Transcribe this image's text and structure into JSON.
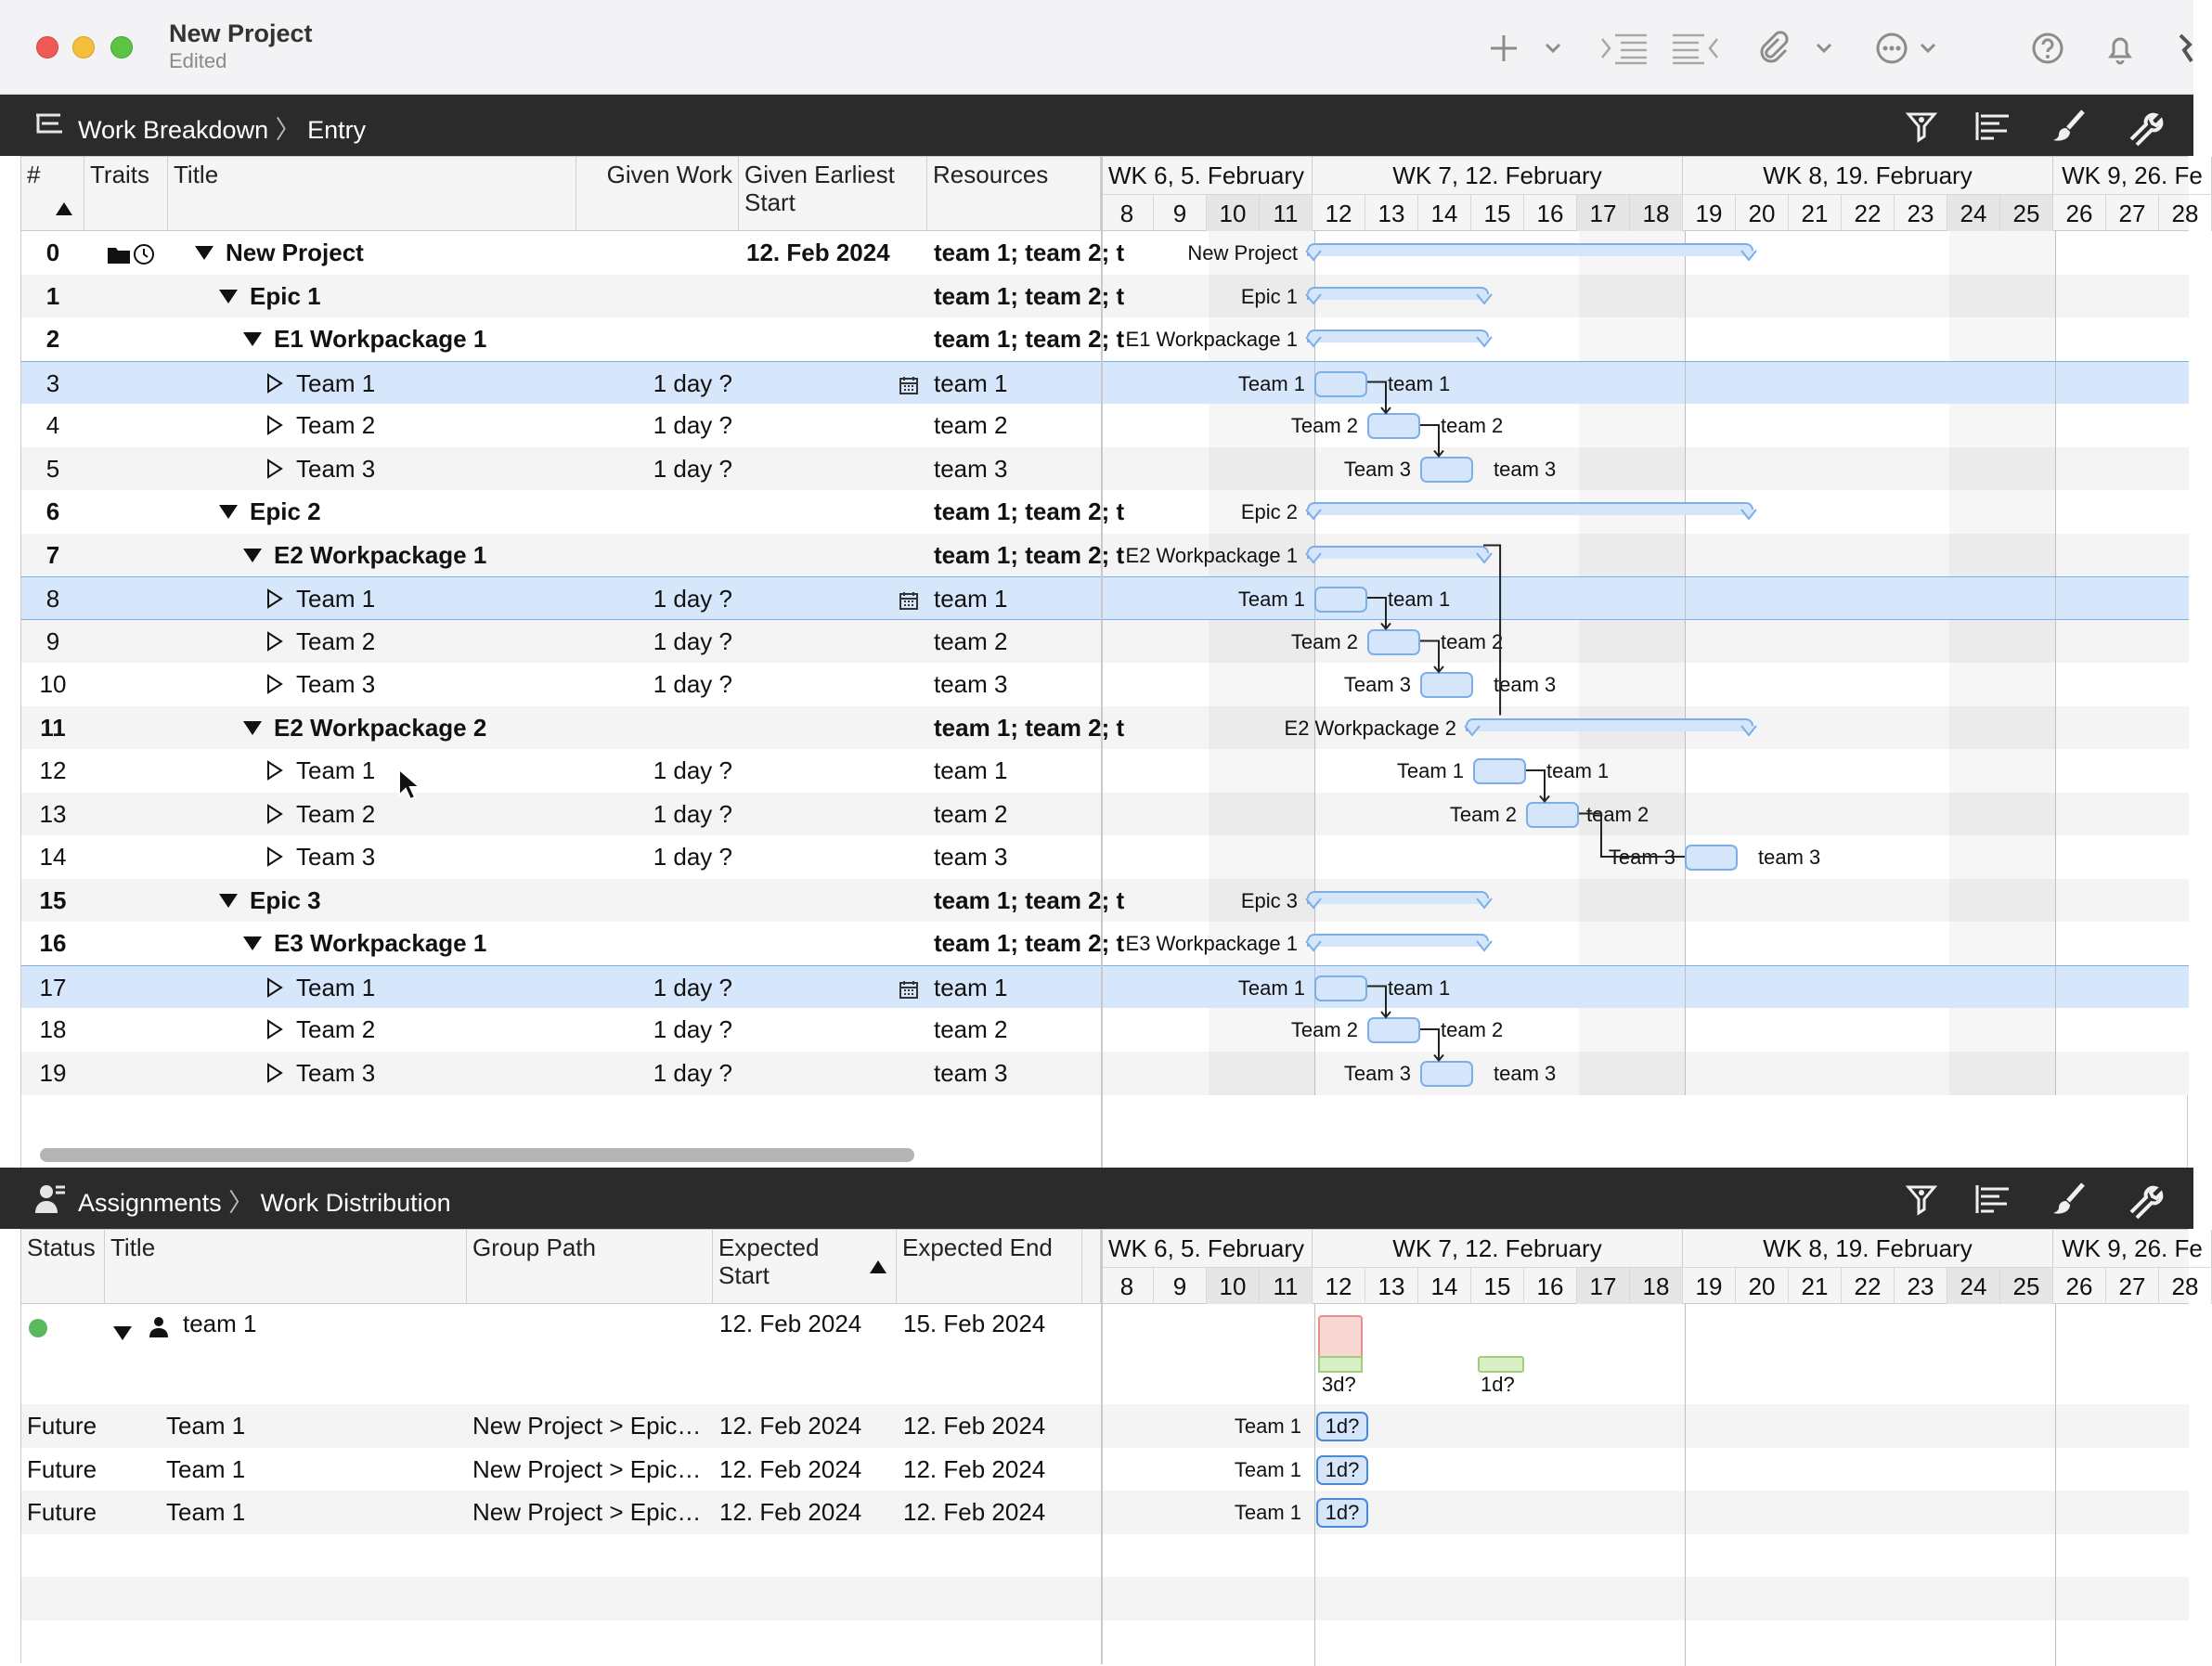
{
  "window": {
    "title": "New Project",
    "subtitle": "Edited"
  },
  "toolbar": {
    "icons": [
      "plus-icon",
      "chevron-down-icon",
      "indent-icon",
      "outdent-icon",
      "paperclip-icon",
      "chevron-down-icon",
      "more-icon",
      "chevron-down-icon",
      "help-icon",
      "bell-icon"
    ]
  },
  "top_pane": {
    "crumb_root": "Work Breakdown",
    "crumb_leaf": "Entry",
    "columns": {
      "num": "#",
      "traits": "Traits",
      "title": "Title",
      "given_work": "Given Work",
      "given_start_l1": "Given Earliest",
      "given_start_l2": "Start",
      "resources": "Resources"
    },
    "rows": [
      {
        "num": "0",
        "title": "New Project",
        "work": "",
        "start": "12. Feb 2024",
        "res": "team 1; team 2; t",
        "bar_label": "New Project",
        "bar_right": ""
      },
      {
        "num": "1",
        "title": "Epic 1",
        "work": "",
        "start": "",
        "res": "team 1; team 2; t",
        "bar_label": "Epic 1",
        "bar_right": ""
      },
      {
        "num": "2",
        "title": "E1 Workpackage 1",
        "work": "",
        "start": "",
        "res": "team 1; team 2; t",
        "bar_label": "E1 Workpackage 1",
        "bar_right": ""
      },
      {
        "num": "3",
        "title": "Team 1",
        "work": "1 day ?",
        "start": "",
        "res": "team 1",
        "bar_label": "Team 1",
        "bar_right": "team 1"
      },
      {
        "num": "4",
        "title": "Team 2",
        "work": "1 day ?",
        "start": "",
        "res": "team 2",
        "bar_label": "Team 2",
        "bar_right": "team 2"
      },
      {
        "num": "5",
        "title": "Team 3",
        "work": "1 day ?",
        "start": "",
        "res": "team 3",
        "bar_label": "Team 3",
        "bar_right": "team 3"
      },
      {
        "num": "6",
        "title": "Epic 2",
        "work": "",
        "start": "",
        "res": "team 1; team 2; t",
        "bar_label": "Epic 2",
        "bar_right": ""
      },
      {
        "num": "7",
        "title": "E2 Workpackage 1",
        "work": "",
        "start": "",
        "res": "team 1; team 2; t",
        "bar_label": "E2 Workpackage 1",
        "bar_right": ""
      },
      {
        "num": "8",
        "title": "Team 1",
        "work": "1 day ?",
        "start": "",
        "res": "team 1",
        "bar_label": "Team 1",
        "bar_right": "team 1"
      },
      {
        "num": "9",
        "title": "Team 2",
        "work": "1 day ?",
        "start": "",
        "res": "team 2",
        "bar_label": "Team 2",
        "bar_right": "team 2"
      },
      {
        "num": "10",
        "title": "Team 3",
        "work": "1 day ?",
        "start": "",
        "res": "team 3",
        "bar_label": "Team 3",
        "bar_right": "team 3"
      },
      {
        "num": "11",
        "title": "E2 Workpackage 2",
        "work": "",
        "start": "",
        "res": "team 1; team 2; t",
        "bar_label": "E2 Workpackage 2",
        "bar_right": ""
      },
      {
        "num": "12",
        "title": "Team 1",
        "work": "1 day ?",
        "start": "",
        "res": "team 1",
        "bar_label": "Team 1",
        "bar_right": "team 1"
      },
      {
        "num": "13",
        "title": "Team 2",
        "work": "1 day ?",
        "start": "",
        "res": "team 2",
        "bar_label": "Team 2",
        "bar_right": "team 2"
      },
      {
        "num": "14",
        "title": "Team 3",
        "work": "1 day ?",
        "start": "",
        "res": "team 3",
        "bar_label": "Team 3",
        "bar_right": "team 3"
      },
      {
        "num": "15",
        "title": "Epic 3",
        "work": "",
        "start": "",
        "res": "team 1; team 2; t",
        "bar_label": "Epic 3",
        "bar_right": ""
      },
      {
        "num": "16",
        "title": "E3 Workpackage 1",
        "work": "",
        "start": "",
        "res": "team 1; team 2; t",
        "bar_label": "E3 Workpackage 1",
        "bar_right": ""
      },
      {
        "num": "17",
        "title": "Team 1",
        "work": "1 day ?",
        "start": "",
        "res": "team 1",
        "bar_label": "Team 1",
        "bar_right": "team 1"
      },
      {
        "num": "18",
        "title": "Team 2",
        "work": "1 day ?",
        "start": "",
        "res": "team 2",
        "bar_label": "Team 2",
        "bar_right": "team 2"
      },
      {
        "num": "19",
        "title": "Team 3",
        "work": "1 day ?",
        "start": "",
        "res": "team 3",
        "bar_label": "Team 3",
        "bar_right": "team 3"
      }
    ]
  },
  "timeline": {
    "weeks": [
      "WK 6, 5. February",
      "WK 7, 12. February",
      "WK 8, 19. February",
      "WK 9, 26. Fe"
    ],
    "days": [
      "8",
      "9",
      "10",
      "11",
      "12",
      "13",
      "14",
      "15",
      "16",
      "17",
      "18",
      "19",
      "20",
      "21",
      "22",
      "23",
      "24",
      "25",
      "26",
      "27",
      "28"
    ]
  },
  "bottom_pane": {
    "crumb_root": "Assignments",
    "crumb_leaf": "Work Distribution",
    "columns": {
      "status": "Status",
      "title": "Title",
      "group_path": "Group Path",
      "exp_start_l1": "Expected",
      "exp_start_l2": "Start",
      "exp_end": "Expected End"
    },
    "resource": {
      "name": "team 1",
      "start": "12. Feb 2024",
      "end": "15. Feb 2024",
      "load_a": "3d?",
      "load_b": "1d?",
      "status_color": "#5cb85c"
    },
    "assignments": [
      {
        "status": "Future",
        "title": "Team 1",
        "path": "New Project > Epic…",
        "start": "12. Feb 2024",
        "end": "12. Feb 2024",
        "bar_label": "Team 1",
        "bar_text": "1d?"
      },
      {
        "status": "Future",
        "title": "Team 1",
        "path": "New Project > Epic…",
        "start": "12. Feb 2024",
        "end": "12. Feb 2024",
        "bar_label": "Team 1",
        "bar_text": "1d?"
      },
      {
        "status": "Future",
        "title": "Team 1",
        "path": "New Project > Epic…",
        "start": "12. Feb 2024",
        "end": "12. Feb 2024",
        "bar_label": "Team 1",
        "bar_text": "1d?"
      }
    ]
  },
  "colors": {
    "selection": "#d7e7fb",
    "bar_fill": "#d5e6fb",
    "bar_border": "#7eaee8",
    "overload": "#f8d6d4",
    "load_ok": "#d9efc6"
  }
}
